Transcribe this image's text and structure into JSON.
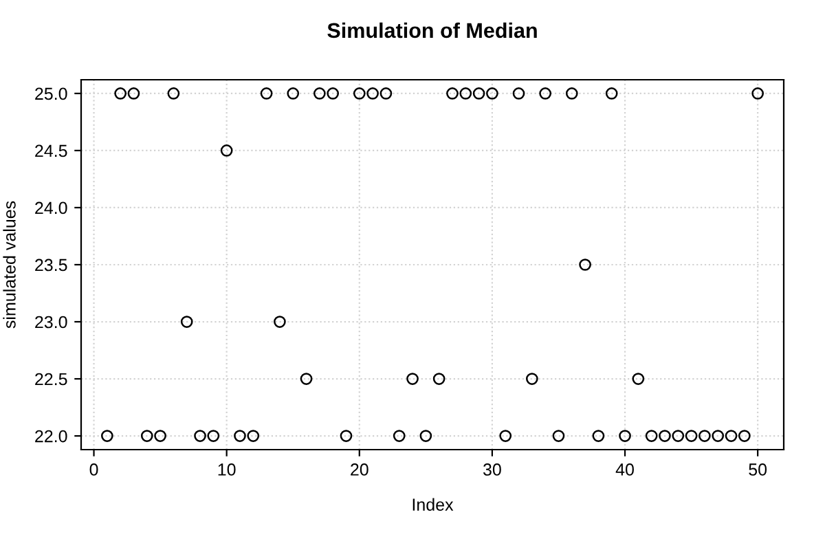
{
  "chart_data": {
    "type": "scatter",
    "title": "Simulation of Median",
    "xlabel": "Index",
    "ylabel": "simulated values",
    "x": [
      1,
      2,
      3,
      4,
      5,
      6,
      7,
      8,
      9,
      10,
      11,
      12,
      13,
      14,
      15,
      16,
      17,
      18,
      19,
      20,
      21,
      22,
      23,
      24,
      25,
      26,
      27,
      28,
      29,
      30,
      31,
      32,
      33,
      34,
      35,
      36,
      37,
      38,
      39,
      40,
      41,
      42,
      43,
      44,
      45,
      46,
      47,
      48,
      49,
      50
    ],
    "series": [
      {
        "color": "#000000",
        "values": [
          22,
          25,
          25,
          22,
          22,
          25,
          23,
          22,
          22,
          24.5,
          22,
          22,
          25,
          23,
          25,
          22.5,
          25,
          25,
          22,
          25,
          25,
          25,
          22,
          22.5,
          22,
          22.5,
          25,
          25,
          25,
          25,
          22,
          25,
          22.5,
          25,
          22,
          25,
          23.5,
          22,
          25,
          22,
          22.5,
          22,
          22,
          22,
          22,
          22,
          22,
          22,
          22,
          25
        ]
      }
    ],
    "xlim": [
      -0.96,
      51.96
    ],
    "ylim": [
      21.88,
      25.12
    ],
    "xticks": [
      0,
      10,
      20,
      30,
      40,
      50
    ],
    "yticks": [
      {
        "value": 22,
        "label": "22.0"
      },
      {
        "value": 22.5,
        "label": "22.5"
      },
      {
        "value": 23,
        "label": "23.0"
      },
      {
        "value": 23.5,
        "label": "23.5"
      },
      {
        "value": 24,
        "label": "24.0"
      },
      {
        "value": 24.5,
        "label": "24.5"
      },
      {
        "value": 25,
        "label": "25.0"
      }
    ],
    "grid": true,
    "marker": "circle"
  }
}
